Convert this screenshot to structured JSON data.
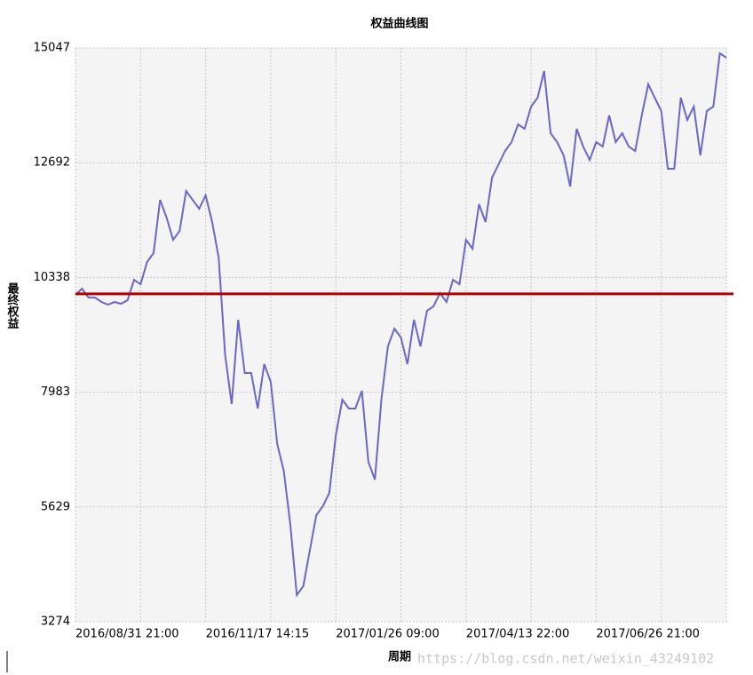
{
  "chart_data": {
    "type": "line",
    "title": "权益曲线图",
    "xlabel": "周期",
    "ylabel": "最终权益",
    "watermark": "https://blog.csdn.net/weixin_43249102",
    "categories": [
      "2016/08/31 21:00",
      null,
      null,
      null,
      null,
      null,
      null,
      null,
      null,
      null,
      null,
      null,
      null,
      null,
      null,
      null,
      null,
      null,
      null,
      null,
      "2016/11/17 14:15",
      null,
      null,
      null,
      null,
      null,
      null,
      null,
      null,
      null,
      null,
      null,
      null,
      null,
      null,
      null,
      null,
      null,
      null,
      null,
      "2017/01/26 09:00",
      null,
      null,
      null,
      null,
      null,
      null,
      null,
      null,
      null,
      null,
      null,
      null,
      null,
      null,
      null,
      null,
      null,
      null,
      null,
      "2017/04/13 22:00",
      null,
      null,
      null,
      null,
      null,
      null,
      null,
      null,
      null,
      null,
      null,
      null,
      null,
      null,
      null,
      null,
      null,
      null,
      null,
      "2017/06/26 21:00",
      null,
      null,
      null,
      null,
      null,
      null,
      null,
      null,
      null,
      null,
      null,
      null,
      null,
      null,
      null,
      null,
      null,
      null,
      null,
      null
    ],
    "series": [
      {
        "name": "最终权益",
        "color": "#6b66c8",
        "values": [
          9980,
          10108,
          9926,
          9926,
          9835,
          9780,
          9835,
          9798,
          9871,
          10290,
          10199,
          10655,
          10837,
          11930,
          11566,
          11110,
          11293,
          12113,
          11930,
          11748,
          12022,
          11475,
          10746,
          8741,
          7739,
          9470,
          8377,
          8377,
          7648,
          8559,
          8194,
          6919,
          6372,
          5279,
          3821,
          4003,
          4732,
          5461,
          5643,
          5916,
          7101,
          7830,
          7648,
          7648,
          8012,
          6554,
          6190,
          7830,
          8923,
          9288,
          9106,
          8559,
          9470,
          8923,
          9652,
          9744,
          10017,
          9835,
          10290,
          10199,
          11110,
          10928,
          11839,
          11475,
          12386,
          12659,
          12933,
          13115,
          13479,
          13388,
          13844,
          14026,
          14573,
          13297,
          13115,
          12842,
          12204,
          13388,
          13024,
          12750,
          13115,
          13024,
          13662,
          13115,
          13297,
          13024,
          12933,
          13662,
          14300,
          14026,
          13753,
          12568,
          12568,
          14026,
          13571,
          13844,
          12842,
          13753,
          13844,
          14937,
          14846
        ]
      }
    ],
    "reference_line": {
      "value": 10000,
      "color": "#b40000"
    },
    "ylim": [
      3274,
      15047
    ],
    "yticks": [
      3274,
      5629,
      7983,
      10338,
      12692,
      15047
    ],
    "grid": true
  }
}
